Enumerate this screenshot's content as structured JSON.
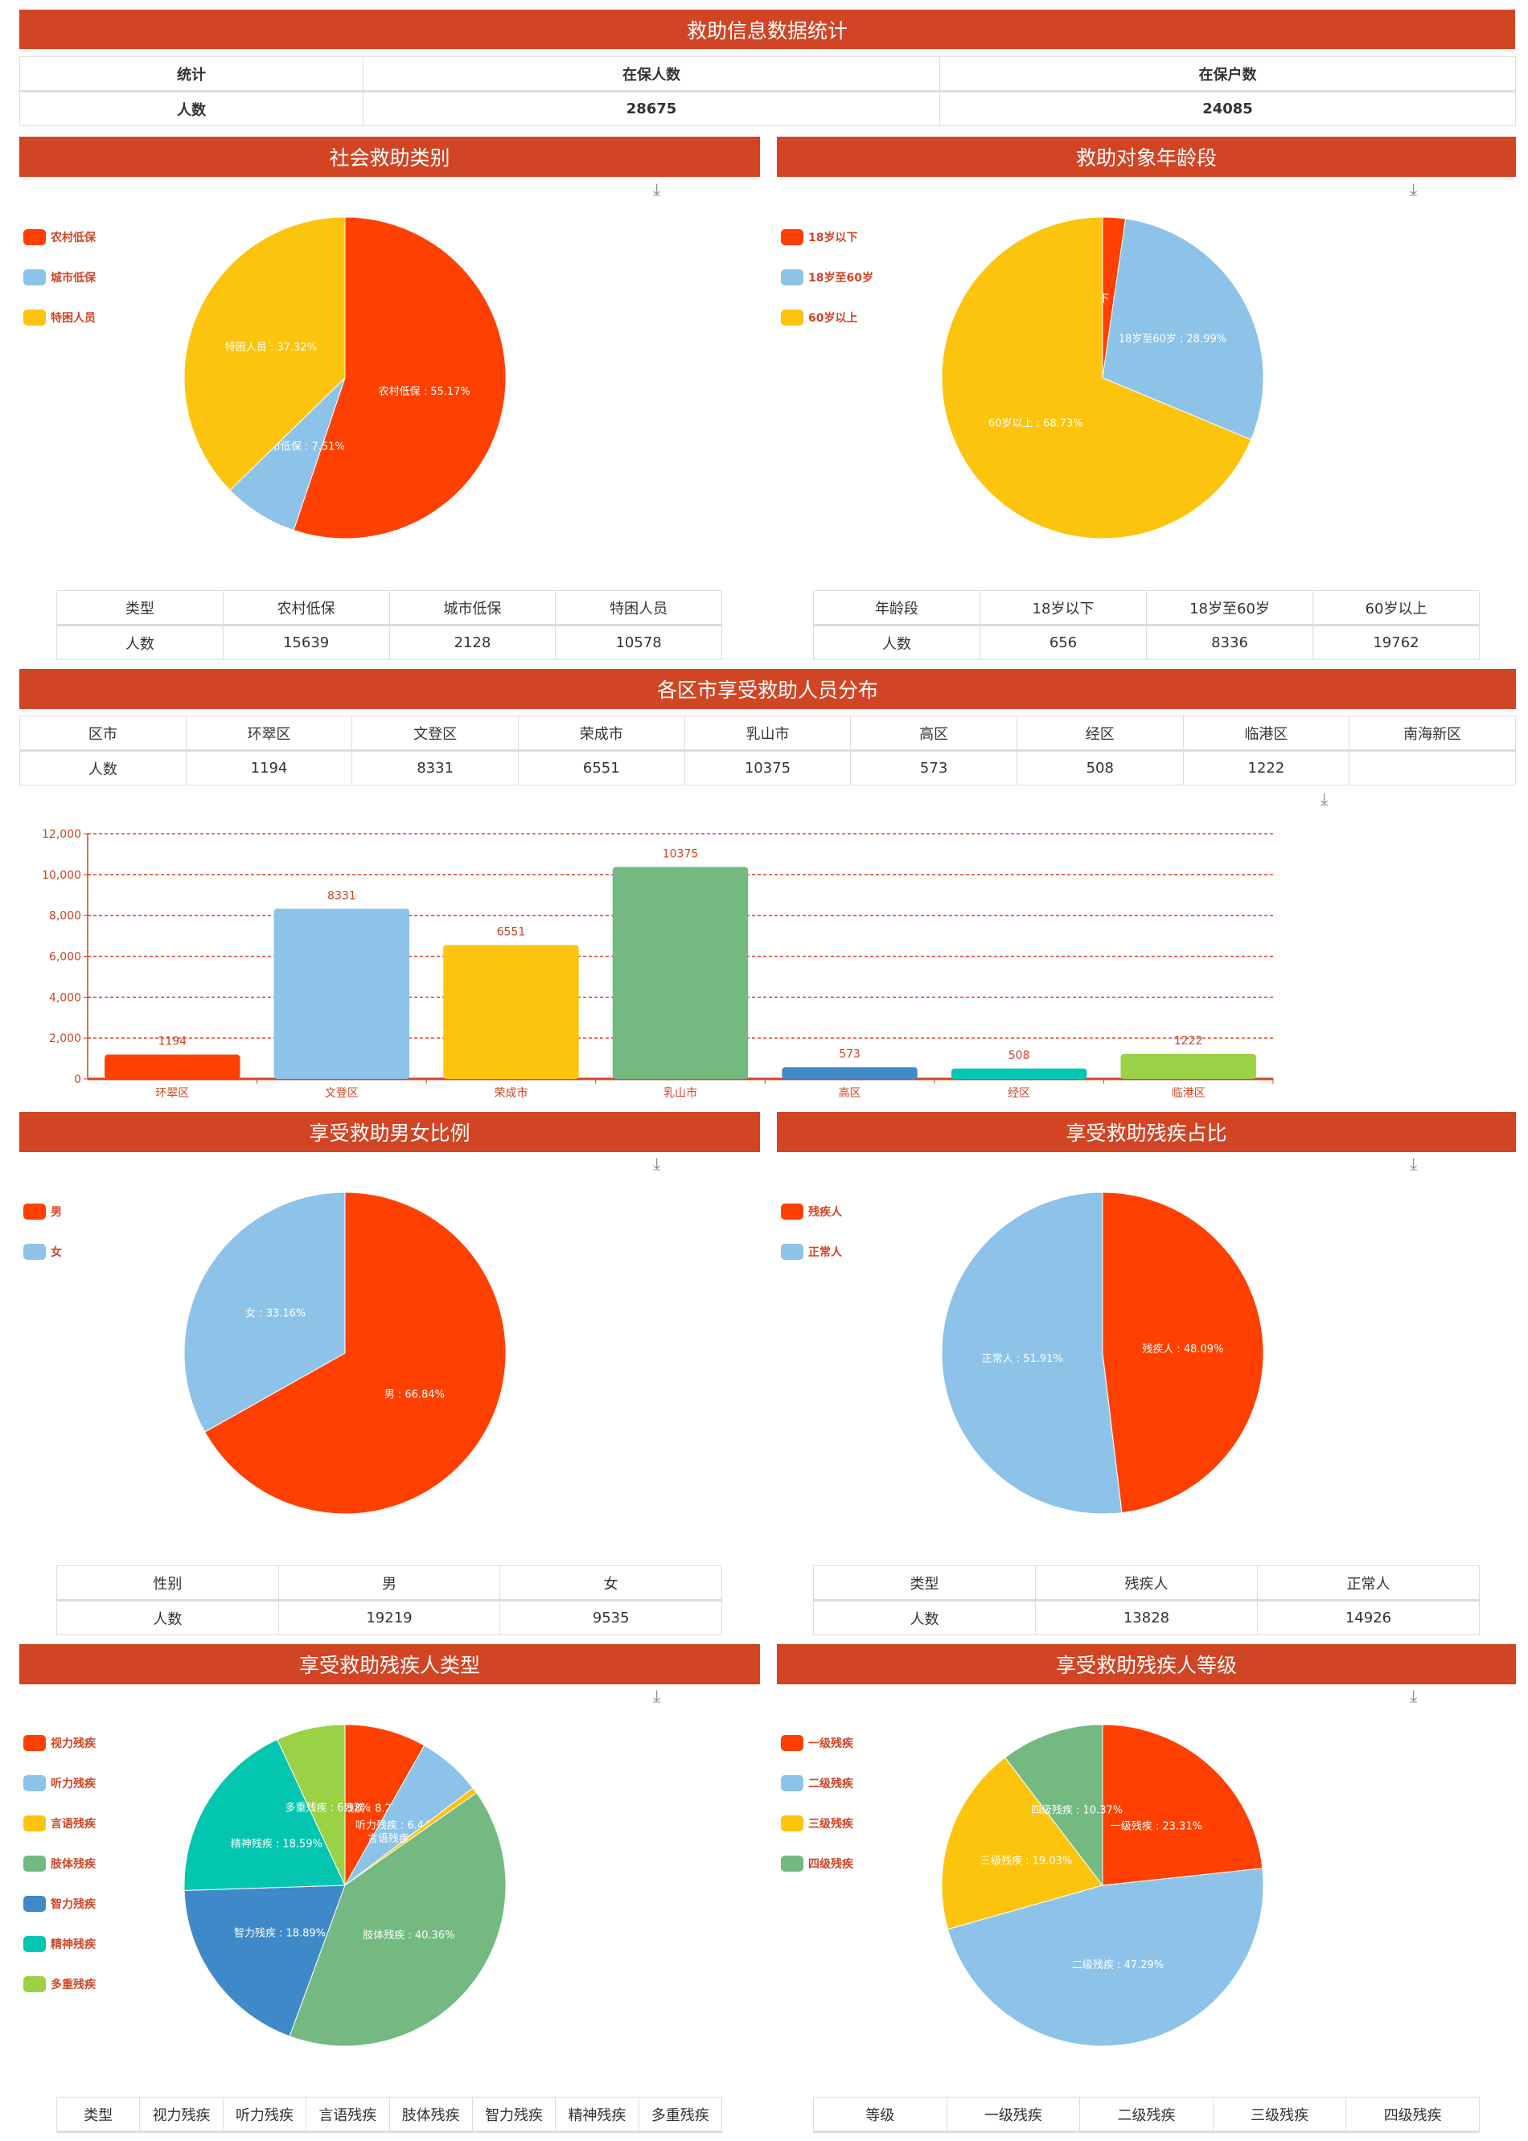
{
  "page_title": "救助信息数据统计",
  "summary": {
    "headers": [
      "统计",
      "在保人数",
      "在保户数"
    ],
    "row": [
      "人数",
      "28675",
      "24085"
    ]
  },
  "download_icon": "download-icon",
  "colors": {
    "header_bg": "#d14424",
    "legend_text": "#d14424"
  },
  "chart_data": [
    {
      "id": "assist_type",
      "type": "pie",
      "title": "社会救助类别",
      "categories": [
        "农村低保",
        "城市低保",
        "特困人员"
      ],
      "values": [
        15639,
        2128,
        10578
      ],
      "labels": [
        "农村低保 : 55.17%",
        "城市低保 : 7.51%",
        "特困人员 : 37.32%"
      ],
      "colors": [
        "#ff4000",
        "#8dc3e8",
        "#fdc40e"
      ],
      "legend": "left",
      "table": {
        "headers": [
          "类型",
          "农村低保",
          "城市低保",
          "特困人员"
        ],
        "row": [
          "人数",
          "15639",
          "2128",
          "10578"
        ]
      }
    },
    {
      "id": "age",
      "type": "pie",
      "title": "救助对象年龄段",
      "categories": [
        "18岁以下",
        "18岁至60岁",
        "60岁以上"
      ],
      "values": [
        656,
        8336,
        19762
      ],
      "labels": [
        "18岁以下 : 2.28%",
        "18岁至60岁 : 28.99%",
        "60岁以上 : 68.73%"
      ],
      "colors": [
        "#ff4000",
        "#8dc3e8",
        "#fdc40e"
      ],
      "legend": "left",
      "table": {
        "headers": [
          "年龄段",
          "18岁以下",
          "18岁至60岁",
          "60岁以上"
        ],
        "row": [
          "人数",
          "656",
          "8336",
          "19762"
        ]
      }
    },
    {
      "id": "district",
      "type": "bar",
      "title": "各区市享受救助人员分布",
      "categories": [
        "环翠区",
        "文登区",
        "荣成市",
        "乳山市",
        "高区",
        "经区",
        "临港区"
      ],
      "values": [
        1194,
        8331,
        6551,
        10375,
        573,
        508,
        1222
      ],
      "colors": [
        "#ff4000",
        "#8dc3e8",
        "#fdc40e",
        "#73b981",
        "#4089c8",
        "#03c6b1",
        "#9bd145"
      ],
      "ylim": [
        0,
        12000
      ],
      "yticks": [
        "0",
        "2,000",
        "4,000",
        "6,000",
        "8,000",
        "10,000",
        "12,000"
      ],
      "grid": true,
      "table": {
        "headers": [
          "区市",
          "环翠区",
          "文登区",
          "荣成市",
          "乳山市",
          "高区",
          "经区",
          "临港区",
          "南海新区"
        ],
        "row": [
          "人数",
          "1194",
          "8331",
          "6551",
          "10375",
          "573",
          "508",
          "1222",
          ""
        ]
      }
    },
    {
      "id": "gender",
      "type": "pie",
      "title": "享受救助男女比例",
      "categories": [
        "男",
        "女"
      ],
      "values": [
        19219,
        9535
      ],
      "labels": [
        "男 : 66.84%",
        "女 : 33.16%"
      ],
      "colors": [
        "#ff4000",
        "#8dc3e8"
      ],
      "legend": "left",
      "table": {
        "headers": [
          "性别",
          "男",
          "女"
        ],
        "row": [
          "人数",
          "19219",
          "9535"
        ]
      }
    },
    {
      "id": "disabled_ratio",
      "type": "pie",
      "title": "享受救助残疾占比",
      "categories": [
        "残疾人",
        "正常人"
      ],
      "values": [
        13828,
        14926
      ],
      "labels": [
        "残疾人 : 48.09%",
        "正常人 : 51.91%"
      ],
      "colors": [
        "#ff4000",
        "#8dc3e8"
      ],
      "legend": "left",
      "table": {
        "headers": [
          "类型",
          "残疾人",
          "正常人"
        ],
        "row": [
          "人数",
          "13828",
          "14926"
        ]
      }
    },
    {
      "id": "disability_type",
      "type": "pie",
      "title": "享受救助残疾人类型",
      "categories": [
        "视力残疾",
        "听力残疾",
        "言语残疾",
        "肢体残疾",
        "智力残疾",
        "精神残疾",
        "多重残疾"
      ],
      "values": [
        8.21,
        6.44,
        0.59,
        40.36,
        18.89,
        18.59,
        6.92
      ],
      "labels": [
        "视力残疾 : 8.21%",
        "听力残疾 : 6.44%",
        "言语残疾 : 0.59%",
        "肢体残疾 : 40.36%",
        "智力残疾 : 18.89%",
        "精神残疾 : 18.59%",
        "多重残疾 : 6.92%"
      ],
      "colors": [
        "#ff4000",
        "#8dc3e8",
        "#fdc40e",
        "#73b981",
        "#4089c8",
        "#03c6b1",
        "#9bd145"
      ],
      "legend": "left",
      "table": {
        "headers": [
          "类型",
          "视力残疾",
          "听力残疾",
          "言语残疾",
          "肢体残疾",
          "智力残疾",
          "精神残疾",
          "多重残疾"
        ]
      }
    },
    {
      "id": "disability_level",
      "type": "pie",
      "title": "享受救助残疾人等级",
      "categories": [
        "一级残疾",
        "二级残疾",
        "三级残疾",
        "四级残疾"
      ],
      "values": [
        23.31,
        47.29,
        19.03,
        10.37
      ],
      "labels": [
        "一级残疾 : 23.31%",
        "二级残疾 : 47.29%",
        "三级残疾 : 19.03%",
        "四级残疾 : 10.37%"
      ],
      "colors": [
        "#ff4000",
        "#8dc3e8",
        "#fdc40e",
        "#73b981"
      ],
      "legend": "left",
      "table": {
        "headers": [
          "等级",
          "一级残疾",
          "二级残疾",
          "三级残疾",
          "四级残疾"
        ]
      }
    }
  ]
}
